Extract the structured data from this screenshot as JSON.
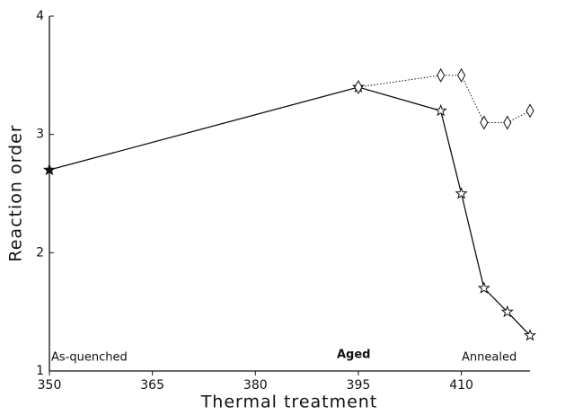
{
  "chart_data": {
    "type": "line",
    "x_label": "Thermal treatment",
    "y_label": "Reaction order",
    "xlim": [
      350,
      420
    ],
    "ylim": [
      1,
      4
    ],
    "xticks": [
      350,
      365,
      380,
      395,
      410
    ],
    "yticks": [
      1,
      2,
      3,
      4
    ],
    "series": [
      {
        "color": "#111111",
        "marker": "star",
        "linestyle": "solid",
        "x": [
          350,
          395,
          407,
          410,
          413.3,
          416.7,
          420
        ],
        "values": [
          2.7,
          3.4,
          3.2,
          2.5,
          1.7,
          1.5,
          1.3
        ]
      },
      {
        "color": "#111111",
        "marker": "diamond",
        "linestyle": "dotted",
        "x": [
          395,
          407,
          410,
          413.3,
          416.7,
          420
        ],
        "values": [
          3.4,
          3.5,
          3.5,
          3.1,
          3.1,
          3.2
        ]
      }
    ],
    "annotations": [
      {
        "text": "As-quenched"
      },
      {
        "text": "Aged"
      },
      {
        "text": "Annealed"
      }
    ]
  }
}
